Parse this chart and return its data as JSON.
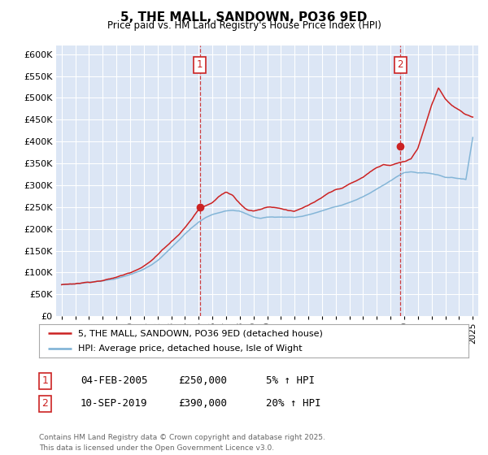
{
  "title": "5, THE MALL, SANDOWN, PO36 9ED",
  "subtitle": "Price paid vs. HM Land Registry's House Price Index (HPI)",
  "plot_bg_color": "#dce6f5",
  "ylim": [
    0,
    620000
  ],
  "yticks": [
    0,
    50000,
    100000,
    150000,
    200000,
    250000,
    300000,
    350000,
    400000,
    450000,
    500000,
    550000,
    600000
  ],
  "ytick_labels": [
    "£0",
    "£50K",
    "£100K",
    "£150K",
    "£200K",
    "£250K",
    "£300K",
    "£350K",
    "£400K",
    "£450K",
    "£500K",
    "£550K",
    "£600K"
  ],
  "hpi_color": "#7ab0d4",
  "price_color": "#cc2222",
  "sale1_year": 2005.09,
  "sale1_price": 250000,
  "sale2_year": 2019.72,
  "sale2_price": 390000,
  "legend_line1": "5, THE MALL, SANDOWN, PO36 9ED (detached house)",
  "legend_line2": "HPI: Average price, detached house, Isle of Wight",
  "table_row1": [
    "1",
    "04-FEB-2005",
    "£250,000",
    "5% ↑ HPI"
  ],
  "table_row2": [
    "2",
    "10-SEP-2019",
    "£390,000",
    "20% ↑ HPI"
  ],
  "footer": "Contains HM Land Registry data © Crown copyright and database right 2025.\nThis data is licensed under the Open Government Licence v3.0.",
  "grid_color": "#ffffff",
  "dashed_line_color": "#cc2222",
  "hpi_data_years": [
    1995,
    1995.5,
    1996,
    1996.5,
    1997,
    1997.5,
    1998,
    1998.5,
    1999,
    1999.5,
    2000,
    2000.5,
    2001,
    2001.5,
    2002,
    2002.5,
    2003,
    2003.5,
    2004,
    2004.5,
    2005,
    2005.5,
    2006,
    2006.5,
    2007,
    2007.5,
    2008,
    2008.5,
    2009,
    2009.5,
    2010,
    2010.5,
    2011,
    2011.5,
    2012,
    2012.5,
    2013,
    2013.5,
    2014,
    2014.5,
    2015,
    2015.5,
    2016,
    2016.5,
    2017,
    2017.5,
    2018,
    2018.5,
    2019,
    2019.5,
    2020,
    2020.5,
    2021,
    2021.5,
    2022,
    2022.5,
    2023,
    2023.5,
    2024,
    2024.5,
    2025
  ],
  "hpi_data_vals": [
    72000,
    73000,
    74000,
    76000,
    78000,
    80000,
    82000,
    84000,
    87000,
    91000,
    96000,
    102000,
    109000,
    117000,
    128000,
    142000,
    157000,
    172000,
    188000,
    202000,
    215000,
    225000,
    232000,
    237000,
    242000,
    244000,
    242000,
    235000,
    228000,
    225000,
    228000,
    228000,
    228000,
    228000,
    228000,
    230000,
    234000,
    238000,
    243000,
    248000,
    252000,
    256000,
    262000,
    268000,
    275000,
    283000,
    292000,
    302000,
    312000,
    322000,
    330000,
    332000,
    330000,
    330000,
    328000,
    325000,
    320000,
    320000,
    318000,
    315000,
    412000
  ],
  "price_data_years": [
    1995,
    1995.5,
    1996,
    1996.5,
    1997,
    1997.5,
    1998,
    1998.5,
    1999,
    1999.5,
    2000,
    2000.5,
    2001,
    2001.5,
    2002,
    2002.5,
    2003,
    2003.5,
    2004,
    2004.5,
    2005,
    2005.5,
    2006,
    2006.5,
    2007,
    2007.5,
    2008,
    2008.5,
    2009,
    2009.5,
    2010,
    2010.5,
    2011,
    2011.5,
    2012,
    2012.5,
    2013,
    2013.5,
    2014,
    2014.5,
    2015,
    2015.5,
    2016,
    2016.5,
    2017,
    2017.5,
    2018,
    2018.5,
    2019,
    2019.5,
    2020,
    2020.5,
    2021,
    2021.5,
    2022,
    2022.5,
    2023,
    2023.5,
    2024,
    2024.5,
    2025
  ],
  "price_data_vals": [
    72000,
    73500,
    75000,
    77000,
    79000,
    81500,
    84000,
    87000,
    91000,
    96000,
    102000,
    110000,
    119000,
    130000,
    144000,
    160000,
    175000,
    190000,
    208000,
    228000,
    250000,
    258000,
    265000,
    280000,
    290000,
    282000,
    265000,
    252000,
    248000,
    252000,
    258000,
    258000,
    255000,
    252000,
    250000,
    255000,
    262000,
    270000,
    278000,
    288000,
    295000,
    300000,
    308000,
    315000,
    323000,
    335000,
    345000,
    352000,
    350000,
    355000,
    358000,
    365000,
    390000,
    440000,
    490000,
    530000,
    505000,
    490000,
    480000,
    468000,
    462000
  ]
}
